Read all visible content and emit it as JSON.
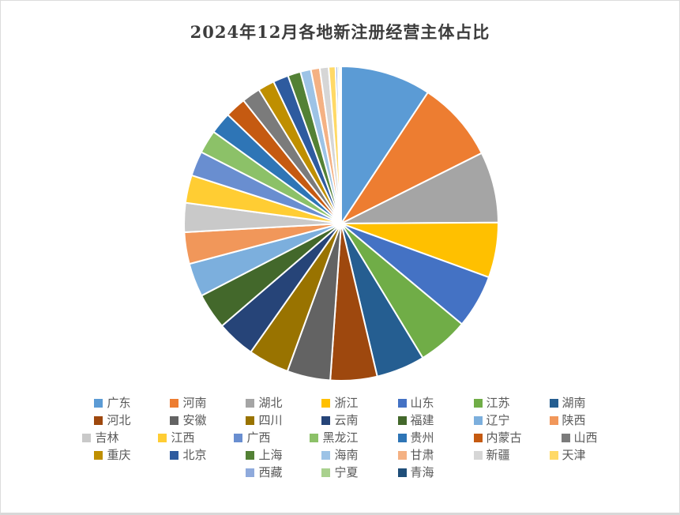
{
  "title": "2024年12月各地新注册经营主体占比",
  "frame": {
    "background": "#FFFFFF",
    "border_color": "#DCDCDC",
    "title_color": "#3C3C3C",
    "legend_text_color": "#595959",
    "slice_gap_color": "#FFFFFF"
  },
  "chart_data": {
    "type": "pie",
    "title": "2024年12月各地新注册经营主体占比",
    "start_angle_deg": 0,
    "direction": "clockwise",
    "legend_position": "bottom",
    "legend_rows": [
      7,
      7,
      7,
      7,
      3
    ],
    "value_unit": "percent-share-estimated-from-arc-angles",
    "slices": [
      {
        "label": "广东",
        "value": 9.3,
        "color": "#5B9BD5"
      },
      {
        "label": "河南",
        "value": 8.3,
        "color": "#ED7D31"
      },
      {
        "label": "湖北",
        "value": 7.3,
        "color": "#A5A5A5"
      },
      {
        "label": "浙江",
        "value": 5.65,
        "color": "#FFC000"
      },
      {
        "label": "山东",
        "value": 5.5,
        "color": "#4472C4"
      },
      {
        "label": "江苏",
        "value": 5.25,
        "color": "#70AD47"
      },
      {
        "label": "湖南",
        "value": 5.0,
        "color": "#255E91"
      },
      {
        "label": "河北",
        "value": 4.8,
        "color": "#9E480E"
      },
      {
        "label": "安徽",
        "value": 4.45,
        "color": "#636363"
      },
      {
        "label": "四川",
        "value": 4.2,
        "color": "#997300"
      },
      {
        "label": "云南",
        "value": 3.95,
        "color": "#264478"
      },
      {
        "label": "福建",
        "value": 3.7,
        "color": "#43682B"
      },
      {
        "label": "辽宁",
        "value": 3.45,
        "color": "#7CAFDD"
      },
      {
        "label": "陕西",
        "value": 3.25,
        "color": "#F1975A"
      },
      {
        "label": "吉林",
        "value": 3.0,
        "color": "#C9C9C9"
      },
      {
        "label": "江西",
        "value": 2.85,
        "color": "#FFCD33"
      },
      {
        "label": "广西",
        "value": 2.55,
        "color": "#698ED0"
      },
      {
        "label": "黑龙江",
        "value": 2.4,
        "color": "#8CC168"
      },
      {
        "label": "贵州",
        "value": 2.25,
        "color": "#2E75B6"
      },
      {
        "label": "内蒙古",
        "value": 2.15,
        "color": "#C55A11"
      },
      {
        "label": "山西",
        "value": 1.9,
        "color": "#7B7B7B"
      },
      {
        "label": "重庆",
        "value": 1.7,
        "color": "#BF8F00"
      },
      {
        "label": "北京",
        "value": 1.58,
        "color": "#2E5B9F"
      },
      {
        "label": "上海",
        "value": 1.32,
        "color": "#538135"
      },
      {
        "label": "海南",
        "value": 1.08,
        "color": "#9DC3E6"
      },
      {
        "label": "甘肃",
        "value": 0.92,
        "color": "#F4B183"
      },
      {
        "label": "新疆",
        "value": 0.9,
        "color": "#D6D6D6"
      },
      {
        "label": "天津",
        "value": 0.7,
        "color": "#FFD966"
      },
      {
        "label": "西藏",
        "value": 0.24,
        "color": "#8FAADC"
      },
      {
        "label": "宁夏",
        "value": 0.19,
        "color": "#A9D18E"
      },
      {
        "label": "青海",
        "value": 0.15,
        "color": "#1F4E79"
      }
    ]
  }
}
